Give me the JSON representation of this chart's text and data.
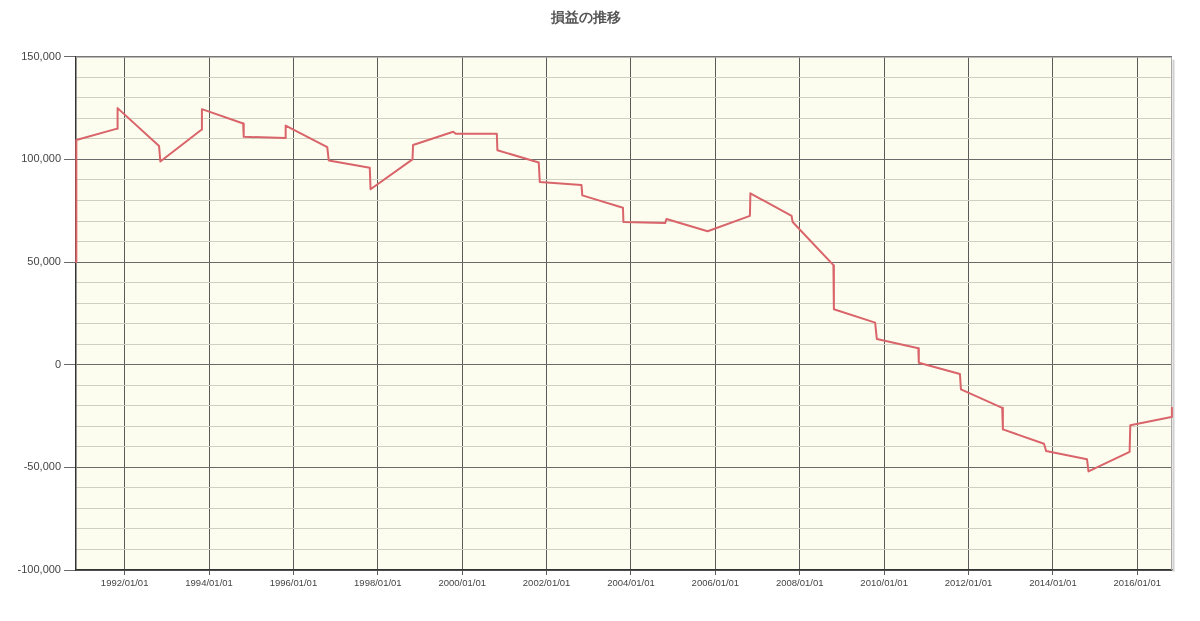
{
  "chart_data": {
    "type": "line",
    "title": "損益の推移",
    "color": "#d9646a",
    "x": [
      "1990-11-06",
      "1990-11-09",
      "1991-10-28",
      "1991-11-01",
      "1992-10-25",
      "1992-11-05",
      "1993-10-27",
      "1993-10-31",
      "1994-10-23",
      "1994-10-28",
      "1995-10-23",
      "1995-10-26",
      "1996-10-20",
      "1996-11-02",
      "1997-10-23",
      "1997-10-30",
      "1998-10-28",
      "1998-11-02",
      "1999-10-16",
      "1999-11-06",
      "2000-10-27",
      "2000-11-01",
      "2001-10-25",
      "2001-11-03",
      "2002-10-30",
      "2002-11-06",
      "2003-10-24",
      "2003-10-28",
      "2004-10-23",
      "2004-11-04",
      "2005-10-26",
      "2006-10-27",
      "2006-10-31",
      "2007-10-23",
      "2007-11-01",
      "2008-10-19",
      "2008-10-23",
      "2009-10-15",
      "2009-10-30",
      "2010-10-24",
      "2010-10-28",
      "2011-10-19",
      "2011-10-28",
      "2012-10-19",
      "2012-10-25",
      "2013-10-16",
      "2013-11-03",
      "2014-10-23",
      "2014-11-05",
      "2015-10-27",
      "2015-11-02",
      "2016-10-23",
      "2016-10-27"
    ],
    "values": [
      50000,
      109500,
      115000,
      125000,
      106500,
      99000,
      114500,
      124500,
      117500,
      111000,
      110500,
      116500,
      106000,
      99500,
      96000,
      85500,
      100000,
      107000,
      113500,
      112500,
      112500,
      104500,
      98500,
      89000,
      87500,
      82500,
      76500,
      69500,
      69000,
      71000,
      65000,
      72500,
      83500,
      72500,
      69500,
      48500,
      27000,
      20500,
      12500,
      8000,
      1000,
      -4500,
      -12000,
      -21000,
      -31500,
      -38500,
      -42000,
      -46000,
      -52000,
      -42500,
      -29500,
      -25500,
      -21000
    ],
    "xlim": [
      "1990-11-06",
      "2016-10-28"
    ],
    "xticks": [
      {
        "value": "1992-01-01",
        "label": "1992/01/01"
      },
      {
        "value": "1994-01-01",
        "label": "1994/01/01"
      },
      {
        "value": "1996-01-01",
        "label": "1996/01/01"
      },
      {
        "value": "1998-01-01",
        "label": "1998/01/01"
      },
      {
        "value": "2000-01-01",
        "label": "2000/01/01"
      },
      {
        "value": "2002-01-01",
        "label": "2002/01/01"
      },
      {
        "value": "2004-01-01",
        "label": "2004/01/01"
      },
      {
        "value": "2006-01-01",
        "label": "2006/01/01"
      },
      {
        "value": "2008-01-01",
        "label": "2008/01/01"
      },
      {
        "value": "2010-01-01",
        "label": "2010/01/01"
      },
      {
        "value": "2012-01-01",
        "label": "2012/01/01"
      },
      {
        "value": "2014-01-01",
        "label": "2014/01/01"
      },
      {
        "value": "2016-01-01",
        "label": "2016/01/01"
      }
    ],
    "ylim": [
      -100000,
      150000
    ],
    "yticks": [
      {
        "value": -100000,
        "label": "-100,000"
      },
      {
        "value": -90000,
        "label": null
      },
      {
        "value": -80000,
        "label": null
      },
      {
        "value": -70000,
        "label": null
      },
      {
        "value": -60000,
        "label": null
      },
      {
        "value": -50000,
        "label": "-50,000"
      },
      {
        "value": -40000,
        "label": null
      },
      {
        "value": -30000,
        "label": null
      },
      {
        "value": -20000,
        "label": null
      },
      {
        "value": -10000,
        "label": null
      },
      0,
      {
        "value": 10000,
        "label": null
      },
      {
        "value": 20000,
        "label": null
      },
      {
        "value": 30000,
        "label": null
      },
      {
        "value": 40000,
        "label": null
      },
      {
        "value": 50000,
        "label": "50,000"
      },
      {
        "value": 60000,
        "label": null
      },
      {
        "value": 70000,
        "label": null
      },
      {
        "value": 80000,
        "label": null
      },
      {
        "value": 90000,
        "label": null
      },
      {
        "value": 100000,
        "label": "100,000"
      },
      {
        "value": 110000,
        "label": null
      },
      {
        "value": 120000,
        "label": null
      },
      {
        "value": 130000,
        "label": null
      },
      {
        "value": 140000,
        "label": null
      },
      {
        "value": 150000,
        "label": "150,000"
      }
    ],
    "grid": true
  }
}
